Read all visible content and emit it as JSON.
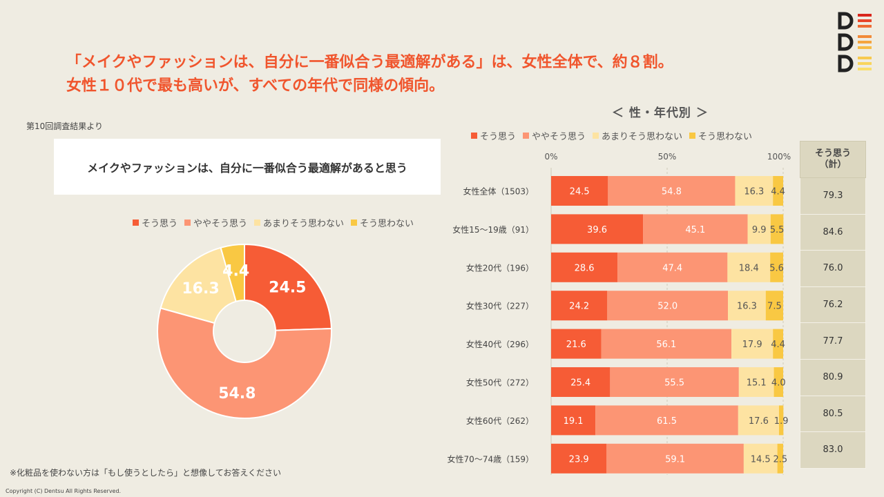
{
  "headline": {
    "line1": "「メイクやファッションは、自分に一番似合う最適解がある」は、女性全体で、約８割。",
    "line2": "女性１０代で最も高いが、すべての年代で同様の傾向。"
  },
  "survey_note": "第10回調査結果より",
  "question": "メイクやファッションは、自分に一番似合う最適解があると思う",
  "colors": {
    "strong_agree": "#f65c36",
    "agree": "#fc9574",
    "disagree": "#fde3a2",
    "strong_disagree": "#f9c843",
    "accent": "#f0552d"
  },
  "legend": [
    {
      "label": "そう思う",
      "color": "#f65c36"
    },
    {
      "label": "ややそう思う",
      "color": "#fc9574"
    },
    {
      "label": "あまりそう思わない",
      "color": "#fde3a2"
    },
    {
      "label": "そう思わない",
      "color": "#f9c843"
    }
  ],
  "right_title": "＜ 性・年代別 ＞",
  "summary_header": {
    "line1": "そう思う",
    "line2": "（計）"
  },
  "footnote": "※化粧品を使わない方は「もし使うとしたら」と想像してお答えください",
  "copyright": "Copyright (C) Dentsu All Rights Reserved.",
  "chart_data": [
    {
      "type": "pie",
      "donut": true,
      "categories": [
        "そう思う",
        "ややそう思う",
        "あまりそう思わない",
        "そう思わない"
      ],
      "values": [
        24.5,
        54.8,
        16.3,
        4.4
      ],
      "labels": [
        "24.5",
        "54.8",
        "16.3",
        "4.4"
      ]
    },
    {
      "type": "bar",
      "orientation": "horizontal",
      "stacked": true,
      "xlim": [
        0,
        100
      ],
      "ticks": [
        "0%",
        "50%",
        "100%"
      ],
      "categories": [
        "女性全体（1503）",
        "女性15～19歳（91）",
        "女性20代（196）",
        "女性30代（227）",
        "女性40代（296）",
        "女性50代（272）",
        "女性60代（262）",
        "女性70～74歳（159）"
      ],
      "series": [
        {
          "name": "そう思う",
          "values": [
            24.5,
            39.6,
            28.6,
            24.2,
            21.6,
            25.4,
            19.1,
            23.9
          ],
          "labels": [
            "24.5",
            "39.6",
            "28.6",
            "24.2",
            "21.6",
            "25.4",
            "19.1",
            "23.9"
          ]
        },
        {
          "name": "ややそう思う",
          "values": [
            54.8,
            45.1,
            47.4,
            52.0,
            56.1,
            55.5,
            61.5,
            59.1
          ],
          "labels": [
            "54.8",
            "45.1",
            "47.4",
            "52.0",
            "56.1",
            "55.5",
            "61.5",
            "59.1"
          ]
        },
        {
          "name": "あまりそう思わない",
          "values": [
            16.3,
            9.9,
            18.4,
            16.3,
            17.9,
            15.1,
            17.6,
            14.5
          ],
          "labels": [
            "16.3",
            "9.9",
            "18.4",
            "16.3",
            "17.9",
            "15.1",
            "17.6",
            "14.5"
          ]
        },
        {
          "name": "そう思わない",
          "values": [
            4.4,
            5.5,
            5.6,
            7.5,
            4.4,
            4.0,
            1.9,
            2.5
          ],
          "labels": [
            "4.4",
            "5.5",
            "5.6",
            "7.5",
            "4.4",
            "4.0",
            "1.9",
            "2.5"
          ]
        }
      ],
      "summary_values": [
        "79.3",
        "84.6",
        "76.0",
        "76.2",
        "77.7",
        "80.9",
        "80.5",
        "83.0"
      ]
    }
  ]
}
